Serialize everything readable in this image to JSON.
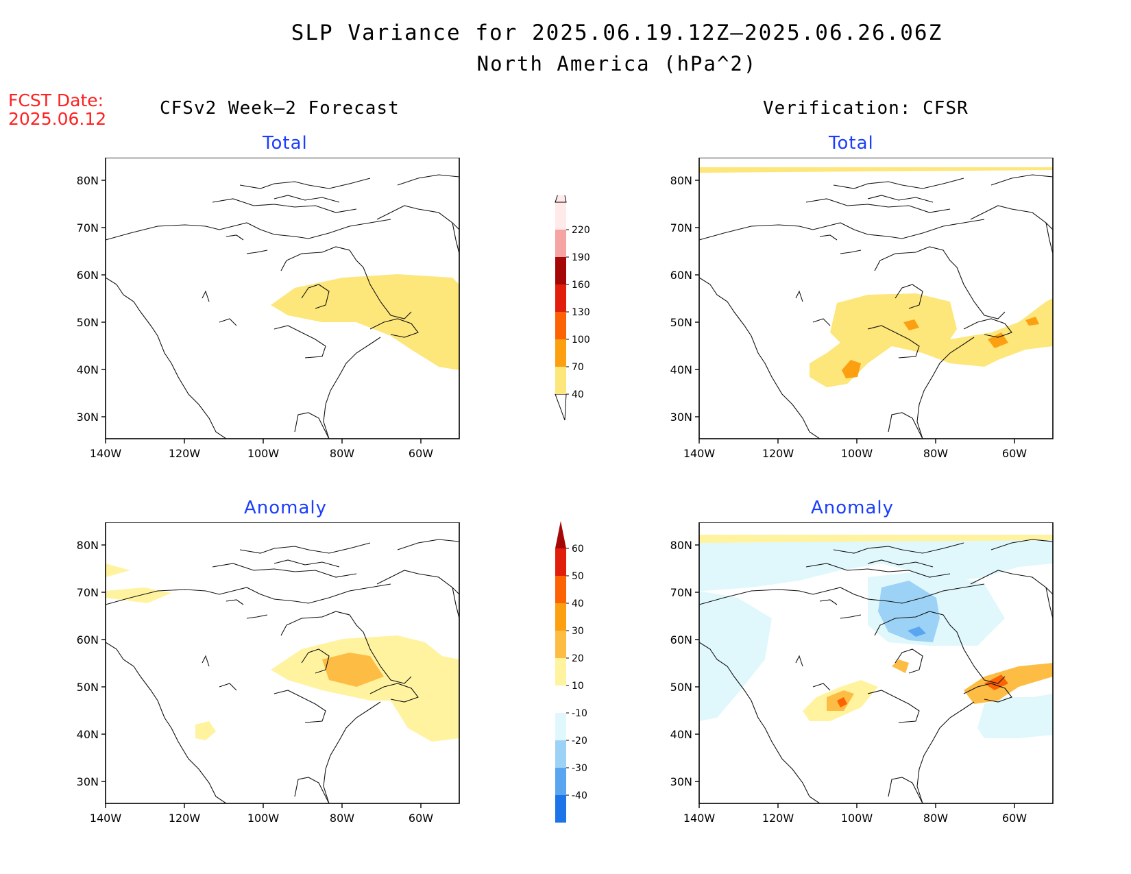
{
  "title": "SLP Variance for 2025.06.19.12Z—2025.06.26.06Z",
  "subtitle": "North America (hPa^2)",
  "fcst_label": "FCST Date:",
  "fcst_date": "2025.06.12",
  "columns": {
    "left": "CFSv2 Week—2 Forecast",
    "right": "Verification: CFSR"
  },
  "panels": {
    "total_label": "Total",
    "anomaly_label": "Anomaly"
  },
  "axes": {
    "lat_ticks": [
      "80N",
      "70N",
      "60N",
      "50N",
      "40N",
      "30N"
    ],
    "lon_ticks": [
      "140W",
      "120W",
      "100W",
      "80W",
      "60W"
    ]
  },
  "colorbar_total": {
    "levels": [
      "40",
      "70",
      "100",
      "130",
      "160",
      "190",
      "220"
    ],
    "colors": [
      "#fde67a",
      "#fca011",
      "#fd6205",
      "#e01e0b",
      "#a50707",
      "#f5a3a3",
      "#ffe9e9"
    ]
  },
  "colorbar_anomaly": {
    "levels": [
      "60",
      "50",
      "40",
      "30",
      "20",
      "10",
      "-10",
      "-20",
      "-30",
      "-40"
    ],
    "colors_top_to_bottom": [
      "#a50707",
      "#e01e0b",
      "#fd6205",
      "#fca011",
      "#fdbd44",
      "#fff3a0",
      "#ffffff",
      "#e0f8fc",
      "#9cd2f5",
      "#5aa5ef",
      "#1c74e8"
    ]
  }
}
